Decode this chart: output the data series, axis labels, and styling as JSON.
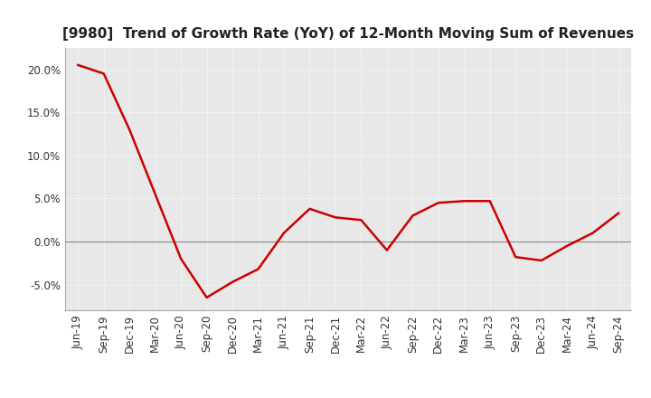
{
  "title": "[9980]  Trend of Growth Rate (YoY) of 12-Month Moving Sum of Revenues",
  "labels": [
    "Jun-19",
    "Sep-19",
    "Dec-19",
    "Mar-20",
    "Jun-20",
    "Sep-20",
    "Dec-20",
    "Mar-21",
    "Jun-21",
    "Sep-21",
    "Dec-21",
    "Mar-22",
    "Jun-22",
    "Sep-22",
    "Dec-22",
    "Mar-23",
    "Jun-23",
    "Sep-23",
    "Dec-23",
    "Mar-24",
    "Jun-24",
    "Sep-24"
  ],
  "values": [
    0.205,
    0.195,
    0.13,
    0.055,
    -0.02,
    -0.065,
    -0.047,
    -0.032,
    0.01,
    0.038,
    0.028,
    0.025,
    -0.01,
    0.03,
    0.045,
    0.047,
    0.047,
    -0.018,
    -0.022,
    -0.005,
    0.01,
    0.033
  ],
  "line_color": "#cc0000",
  "background_color": "#ffffff",
  "plot_bg_color": "#e8e8e8",
  "grid_color": "#ffffff",
  "ylim": [
    -0.08,
    0.225
  ],
  "yticks": [
    -0.05,
    0.0,
    0.05,
    0.1,
    0.15,
    0.2
  ],
  "title_fontsize": 11,
  "tick_fontsize": 8.5
}
